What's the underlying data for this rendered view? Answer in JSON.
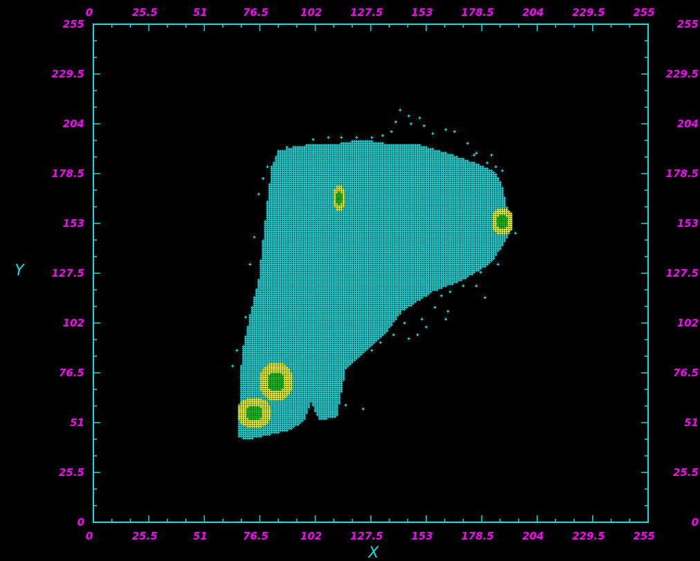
{
  "colors": {
    "background": "#000000",
    "frame": "#00e5e5",
    "tick_labels": "#ff00ff",
    "axis_titles": "#00e5e5",
    "density_low": "#00e5e5",
    "density_mid": "#ffff00",
    "density_high": "#00c800"
  },
  "chart_data": {
    "type": "scatter",
    "xlabel": "X",
    "ylabel": "Y",
    "xlim": [
      0,
      255
    ],
    "ylim": [
      0,
      255
    ],
    "grid": false,
    "x_ticks": [
      "0",
      "25.5",
      "51",
      "76.5",
      "102",
      "127.5",
      "153",
      "178.5",
      "204",
      "229.5",
      "255"
    ],
    "y_ticks": [
      "0",
      "25.5",
      "51",
      "76.5",
      "102",
      "127.5",
      "153",
      "178.5",
      "204",
      "229.5",
      "255"
    ],
    "tick_values": [
      0,
      25.5,
      51,
      76.5,
      102,
      127.5,
      153,
      178.5,
      204,
      229.5,
      255
    ],
    "cluster_outline": [
      [
        70,
        42
      ],
      [
        90,
        47
      ],
      [
        97,
        52
      ],
      [
        100,
        62
      ],
      [
        104,
        52
      ],
      [
        112,
        54
      ],
      [
        114,
        66
      ],
      [
        116,
        78
      ],
      [
        122,
        84
      ],
      [
        134,
        96
      ],
      [
        142,
        108
      ],
      [
        156,
        118
      ],
      [
        170,
        124
      ],
      [
        183,
        133
      ],
      [
        189,
        143
      ],
      [
        193,
        152
      ],
      [
        190,
        162
      ],
      [
        188,
        172
      ],
      [
        185,
        179
      ],
      [
        178,
        183
      ],
      [
        168,
        187
      ],
      [
        157,
        191
      ],
      [
        147,
        194
      ],
      [
        134,
        194
      ],
      [
        124,
        196
      ],
      [
        114,
        194
      ],
      [
        104,
        194
      ],
      [
        92,
        192
      ],
      [
        85,
        190
      ],
      [
        82,
        182
      ],
      [
        80,
        164
      ],
      [
        78,
        144
      ],
      [
        76,
        124
      ],
      [
        72,
        106
      ],
      [
        69,
        90
      ],
      [
        68,
        80
      ],
      [
        67,
        60
      ],
      [
        67,
        44
      ]
    ],
    "density_high_regions": [
      {
        "center": [
          84,
          72
        ],
        "radius": [
          8,
          10
        ]
      },
      {
        "center": [
          74,
          56
        ],
        "radius": [
          8,
          8
        ]
      },
      {
        "center": [
          188,
          154
        ],
        "radius": [
          5,
          7
        ]
      },
      {
        "center": [
          113,
          166
        ],
        "radius": [
          2.5,
          7
        ]
      }
    ],
    "scattered_points": [
      [
        141,
        211
      ],
      [
        145,
        208
      ],
      [
        150,
        207
      ],
      [
        146,
        204
      ],
      [
        139,
        205
      ],
      [
        152,
        203
      ],
      [
        156,
        199
      ],
      [
        162,
        201
      ],
      [
        166,
        200
      ],
      [
        172,
        194
      ],
      [
        176,
        189
      ],
      [
        181,
        184
      ],
      [
        185,
        182
      ],
      [
        175,
        188
      ],
      [
        137,
        200
      ],
      [
        133,
        198
      ],
      [
        128,
        197
      ],
      [
        121,
        197
      ],
      [
        114,
        197
      ],
      [
        108,
        197
      ],
      [
        101,
        196
      ],
      [
        97,
        192
      ],
      [
        89,
        192
      ],
      [
        84,
        186
      ],
      [
        80,
        182
      ],
      [
        78,
        176
      ],
      [
        76,
        168
      ],
      [
        74,
        146
      ],
      [
        72,
        132
      ],
      [
        70,
        105
      ],
      [
        66,
        88
      ],
      [
        64,
        80
      ],
      [
        68,
        75
      ],
      [
        186,
        132
      ],
      [
        178,
        128
      ],
      [
        170,
        121
      ],
      [
        164,
        118
      ],
      [
        160,
        116
      ],
      [
        163,
        108
      ],
      [
        157,
        110
      ],
      [
        151,
        104
      ],
      [
        153,
        100
      ],
      [
        149,
        96
      ],
      [
        145,
        94
      ],
      [
        143,
        102
      ],
      [
        138,
        96
      ],
      [
        132,
        92
      ],
      [
        128,
        88
      ],
      [
        130,
        98
      ],
      [
        162,
        104
      ],
      [
        176,
        121
      ],
      [
        180,
        115
      ],
      [
        194,
        148
      ],
      [
        96,
        85
      ],
      [
        93,
        80
      ],
      [
        124,
        58
      ],
      [
        116,
        60
      ],
      [
        110,
        56
      ],
      [
        118,
        90
      ],
      [
        188,
        180
      ],
      [
        183,
        188
      ],
      [
        115,
        172
      ],
      [
        120,
        168
      ]
    ]
  }
}
